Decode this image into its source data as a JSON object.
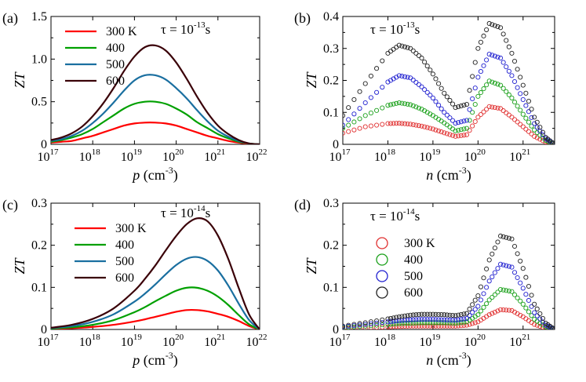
{
  "chart_data": [
    {
      "panel_label": "(a)",
      "type": "line",
      "x_var": "p",
      "x_unit_base": "cm",
      "x_unit_exp": "-3",
      "ylabel": "ZT",
      "x_scale": "log",
      "xlim_log10": [
        17,
        22
      ],
      "ylim": [
        0,
        1.5
      ],
      "y_ticks": [
        "0",
        "0.5",
        "1.0",
        "1.5"
      ],
      "x_ticks_log10": [
        17,
        18,
        19,
        20,
        21,
        22
      ],
      "tau_exp": "-13",
      "legend_position": "top-left",
      "x_log10": [
        17,
        17.25,
        17.5,
        17.75,
        18,
        18.25,
        18.5,
        18.75,
        19,
        19.25,
        19.5,
        19.75,
        20,
        20.25,
        20.5,
        20.75,
        21,
        21.25,
        21.5,
        21.75,
        22
      ],
      "series": [
        {
          "name": "300 K",
          "color": "#ff0000",
          "values": [
            0.02,
            0.03,
            0.04,
            0.07,
            0.1,
            0.14,
            0.18,
            0.22,
            0.245,
            0.255,
            0.255,
            0.245,
            0.22,
            0.18,
            0.14,
            0.1,
            0.07,
            0.04,
            0.02,
            0.005,
            0.0
          ]
        },
        {
          "name": "400",
          "color": "#00a000",
          "values": [
            0.03,
            0.05,
            0.08,
            0.12,
            0.18,
            0.26,
            0.34,
            0.42,
            0.475,
            0.5,
            0.5,
            0.475,
            0.42,
            0.35,
            0.26,
            0.19,
            0.12,
            0.07,
            0.03,
            0.01,
            0.0
          ]
        },
        {
          "name": "500",
          "color": "#1a6fa0",
          "values": [
            0.04,
            0.06,
            0.1,
            0.16,
            0.25,
            0.36,
            0.49,
            0.63,
            0.75,
            0.81,
            0.81,
            0.76,
            0.66,
            0.54,
            0.4,
            0.27,
            0.16,
            0.09,
            0.04,
            0.01,
            0.0
          ]
        },
        {
          "name": "600",
          "color": "#3a0008",
          "values": [
            0.05,
            0.08,
            0.13,
            0.21,
            0.33,
            0.48,
            0.66,
            0.86,
            1.03,
            1.14,
            1.16,
            1.1,
            0.96,
            0.77,
            0.56,
            0.37,
            0.22,
            0.12,
            0.05,
            0.01,
            0.0
          ]
        }
      ]
    },
    {
      "panel_label": "(b)",
      "type": "scatter",
      "x_var": "n",
      "x_unit_base": "cm",
      "x_unit_exp": "-3",
      "ylabel": "ZT",
      "x_scale": "log",
      "xlim_log10": [
        17,
        21.7
      ],
      "ylim": [
        0,
        0.4
      ],
      "y_ticks": [
        "0",
        "0.1",
        "0.2",
        "0.3",
        "0.4"
      ],
      "x_ticks_log10": [
        17,
        18,
        19,
        20,
        21
      ],
      "tau_exp": "-13",
      "x_log10": [
        17.0,
        17.5,
        18.0,
        18.25,
        18.5,
        18.75,
        19.0,
        19.25,
        19.5,
        19.75,
        20.0,
        20.25,
        20.5,
        20.75,
        21.0,
        21.25,
        21.5,
        21.7
      ],
      "series": [
        {
          "name": "300 K",
          "color": "#e03030",
          "values": [
            0.035,
            0.055,
            0.065,
            0.066,
            0.063,
            0.057,
            0.048,
            0.036,
            0.025,
            0.03,
            0.085,
            0.118,
            0.112,
            0.085,
            0.055,
            0.025,
            0.007,
            0.0
          ]
        },
        {
          "name": "400",
          "color": "#1aa01a",
          "values": [
            0.05,
            0.09,
            0.122,
            0.13,
            0.124,
            0.11,
            0.09,
            0.067,
            0.042,
            0.05,
            0.15,
            0.198,
            0.185,
            0.145,
            0.094,
            0.045,
            0.012,
            0.0
          ]
        },
        {
          "name": "500",
          "color": "#2020d0",
          "values": [
            0.06,
            0.13,
            0.195,
            0.215,
            0.208,
            0.18,
            0.145,
            0.1,
            0.066,
            0.075,
            0.21,
            0.282,
            0.27,
            0.215,
            0.14,
            0.065,
            0.018,
            0.0
          ]
        },
        {
          "name": "600",
          "color": "#202020",
          "values": [
            0.09,
            0.19,
            0.285,
            0.31,
            0.3,
            0.27,
            0.22,
            0.16,
            0.115,
            0.125,
            0.3,
            0.378,
            0.365,
            0.285,
            0.185,
            0.085,
            0.022,
            0.0
          ]
        }
      ]
    },
    {
      "panel_label": "(c)",
      "type": "line",
      "x_var": "p",
      "x_unit_base": "cm",
      "x_unit_exp": "-3",
      "ylabel": "ZT",
      "x_scale": "log",
      "xlim_log10": [
        17,
        22
      ],
      "ylim": [
        0,
        0.3
      ],
      "y_ticks": [
        "0",
        "0.1",
        "0.2",
        "0.3"
      ],
      "x_ticks_log10": [
        17,
        18,
        19,
        20,
        21,
        22
      ],
      "tau_exp": "-14",
      "legend_position": "top-left",
      "x_log10": [
        17,
        17.5,
        18,
        18.5,
        19,
        19.25,
        19.5,
        19.75,
        20,
        20.25,
        20.5,
        20.75,
        21,
        21.25,
        21.5,
        21.75,
        22
      ],
      "series": [
        {
          "name": "300 K",
          "color": "#ff0000",
          "values": [
            0.001,
            0.003,
            0.006,
            0.011,
            0.019,
            0.024,
            0.03,
            0.036,
            0.042,
            0.046,
            0.046,
            0.043,
            0.037,
            0.03,
            0.02,
            0.008,
            0.0
          ]
        },
        {
          "name": "400",
          "color": "#00a000",
          "values": [
            0.002,
            0.005,
            0.011,
            0.022,
            0.041,
            0.053,
            0.067,
            0.08,
            0.092,
            0.099,
            0.099,
            0.092,
            0.078,
            0.058,
            0.034,
            0.012,
            0.0
          ]
        },
        {
          "name": "500",
          "color": "#1a6fa0",
          "values": [
            0.003,
            0.008,
            0.018,
            0.036,
            0.066,
            0.085,
            0.107,
            0.131,
            0.153,
            0.168,
            0.172,
            0.163,
            0.14,
            0.104,
            0.061,
            0.022,
            0.0
          ]
        },
        {
          "name": "600",
          "color": "#3a0008",
          "values": [
            0.004,
            0.011,
            0.025,
            0.05,
            0.092,
            0.12,
            0.152,
            0.188,
            0.222,
            0.25,
            0.264,
            0.257,
            0.223,
            0.167,
            0.098,
            0.035,
            0.0
          ]
        }
      ]
    },
    {
      "panel_label": "(d)",
      "type": "scatter",
      "x_var": "n",
      "x_unit_base": "cm",
      "x_unit_exp": "-3",
      "ylabel": "ZT",
      "x_scale": "log",
      "xlim_log10": [
        17,
        21.7
      ],
      "ylim": [
        0,
        0.3
      ],
      "y_ticks": [
        "0",
        "0.1",
        "0.2",
        "0.3"
      ],
      "x_ticks_log10": [
        17,
        18,
        19,
        20,
        21
      ],
      "tau_exp": "-14",
      "legend_position": "center-left",
      "x_log10": [
        17.0,
        17.5,
        18.0,
        18.25,
        18.5,
        18.75,
        19.0,
        19.25,
        19.5,
        19.75,
        20.0,
        20.25,
        20.5,
        20.75,
        21.0,
        21.25,
        21.5,
        21.7
      ],
      "series": [
        {
          "name": "300 K",
          "color": "#e03030",
          "values": [
            0.002,
            0.004,
            0.006,
            0.007,
            0.008,
            0.008,
            0.008,
            0.008,
            0.008,
            0.01,
            0.018,
            0.035,
            0.047,
            0.045,
            0.03,
            0.012,
            0.003,
            0.0
          ]
        },
        {
          "name": "400",
          "color": "#1aa01a",
          "values": [
            0.004,
            0.008,
            0.012,
            0.014,
            0.015,
            0.016,
            0.016,
            0.016,
            0.015,
            0.018,
            0.035,
            0.07,
            0.095,
            0.09,
            0.06,
            0.024,
            0.006,
            0.0
          ]
        },
        {
          "name": "500",
          "color": "#2020d0",
          "values": [
            0.006,
            0.012,
            0.018,
            0.021,
            0.023,
            0.024,
            0.024,
            0.023,
            0.022,
            0.026,
            0.055,
            0.115,
            0.155,
            0.148,
            0.098,
            0.04,
            0.01,
            0.0
          ]
        },
        {
          "name": "600",
          "color": "#202020",
          "values": [
            0.008,
            0.016,
            0.025,
            0.03,
            0.034,
            0.036,
            0.036,
            0.035,
            0.033,
            0.038,
            0.08,
            0.165,
            0.222,
            0.215,
            0.145,
            0.06,
            0.015,
            0.0
          ]
        }
      ]
    }
  ]
}
